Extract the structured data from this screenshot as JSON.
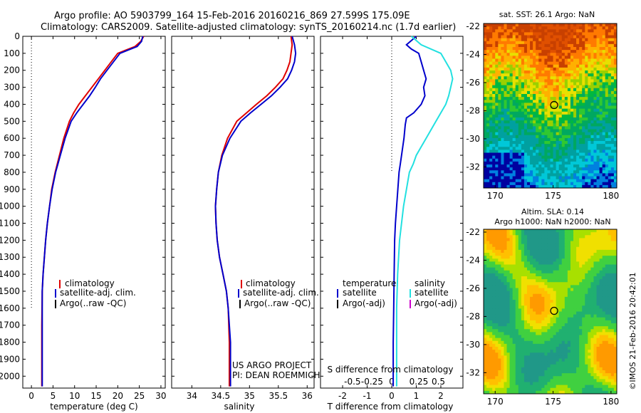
{
  "header": {
    "line1": "Argo profile: AO 5903799_164 15-Feb-2016 20160216_869 27.599S 175.09E",
    "line2": "Climatology: CARS2009. Satellite-adjusted climatology: synTS_20160214.nc (1.7d earlier)"
  },
  "colors": {
    "climatology": "#e00000",
    "satellite": "#0000cc",
    "argo": "#000000",
    "sal_satellite": "#22e0e0",
    "sal_argo": "#cc00cc"
  },
  "chart_data": [
    {
      "type": "line",
      "panel": "temperature",
      "xlabel": "temperature (deg C)",
      "ylabel": "",
      "xlim": [
        -2,
        31
      ],
      "ylim": [
        2070,
        0
      ],
      "x_ticks": [
        0,
        5,
        10,
        15,
        20,
        25,
        30
      ],
      "y_ticks": [
        0,
        100,
        200,
        300,
        400,
        500,
        600,
        700,
        800,
        900,
        1000,
        1100,
        1200,
        1300,
        1400,
        1500,
        1600,
        1700,
        1800,
        1900,
        2000
      ],
      "series": [
        {
          "name": "climatology",
          "color": "#e00000",
          "x": [
            26.0,
            25.3,
            24.0,
            22.0,
            20.0,
            18.5,
            17.0,
            15.5,
            14.0,
            12.5,
            11.0,
            9.8,
            8.8,
            7.5,
            6.5,
            5.5,
            4.7,
            4.2,
            3.7,
            3.3,
            3.0,
            2.7,
            2.5,
            2.4,
            2.4
          ],
          "y": [
            0,
            30,
            60,
            80,
            100,
            150,
            200,
            250,
            300,
            350,
            400,
            450,
            500,
            600,
            700,
            800,
            900,
            1000,
            1100,
            1200,
            1300,
            1400,
            1500,
            1700,
            2060
          ]
        },
        {
          "name": "satellite-adj. clim.",
          "color": "#0000cc",
          "x": [
            25.8,
            25.5,
            24.5,
            22.5,
            20.5,
            19.0,
            17.5,
            16.0,
            14.8,
            13.5,
            12.0,
            10.5,
            9.2,
            7.8,
            6.7,
            5.6,
            4.8,
            4.2,
            3.7,
            3.3,
            3.0,
            2.7,
            2.5,
            2.5,
            2.5
          ],
          "y": [
            0,
            30,
            60,
            80,
            100,
            150,
            200,
            250,
            300,
            350,
            400,
            450,
            500,
            600,
            700,
            800,
            900,
            1000,
            1100,
            1200,
            1300,
            1400,
            1500,
            1700,
            2060
          ]
        },
        {
          "name": "Argo(..raw -QC)",
          "color": "#000000",
          "x": [],
          "y": []
        }
      ],
      "reference_line_x": 0,
      "reference_line_ymax": 1600,
      "legend": [
        "climatology",
        "satellite-adj. clim.",
        "Argo(..raw -QC)"
      ]
    },
    {
      "type": "line",
      "panel": "salinity",
      "xlabel": "salinity",
      "xlim": [
        33.65,
        36.12
      ],
      "ylim": [
        2070,
        0
      ],
      "x_ticks": [
        34,
        34.5,
        35,
        35.5,
        36
      ],
      "series": [
        {
          "name": "climatology",
          "color": "#e00000",
          "x": [
            35.72,
            35.74,
            35.72,
            35.7,
            35.65,
            35.58,
            35.45,
            35.3,
            35.12,
            34.95,
            34.78,
            34.62,
            34.52,
            34.46,
            34.43,
            34.41,
            34.42,
            34.44,
            34.48,
            34.54,
            34.6,
            34.63,
            34.65,
            34.65
          ],
          "y": [
            0,
            50,
            100,
            150,
            200,
            250,
            300,
            350,
            400,
            450,
            500,
            600,
            700,
            800,
            900,
            1000,
            1100,
            1200,
            1300,
            1400,
            1500,
            1600,
            1800,
            2060
          ]
        },
        {
          "name": "satellite-adj. clim.",
          "color": "#0000cc",
          "x": [
            35.74,
            35.78,
            35.8,
            35.78,
            35.73,
            35.66,
            35.53,
            35.38,
            35.2,
            35.02,
            34.85,
            34.66,
            34.53,
            34.46,
            34.43,
            34.41,
            34.42,
            34.44,
            34.48,
            34.54,
            34.6,
            34.63,
            34.67,
            34.67
          ],
          "y": [
            0,
            50,
            100,
            150,
            200,
            250,
            300,
            350,
            400,
            450,
            500,
            600,
            700,
            800,
            900,
            1000,
            1100,
            1200,
            1300,
            1400,
            1500,
            1600,
            1800,
            2060
          ]
        },
        {
          "name": "Argo(..raw -QC)",
          "color": "#000000",
          "x": [],
          "y": []
        }
      ],
      "legend": [
        "climatology",
        "satellite-adj. clim.",
        "Argo(..raw -QC)"
      ],
      "annotation": [
        "US ARGO PROJECT",
        "PI: DEAN ROEMMICH"
      ]
    },
    {
      "type": "line",
      "panel": "difference",
      "xlabel": "T difference from climatology",
      "xlabel_top": "S difference from climatology",
      "xlim": [
        -2.9,
        2.9
      ],
      "ylim": [
        2070,
        0
      ],
      "x_ticks": [
        -2,
        -1,
        0,
        1,
        2
      ],
      "x_ticks_top": [
        "-0.5",
        "-0.25",
        "0",
        "0.25",
        "0.5"
      ],
      "series": [
        {
          "name": "temperature satellite",
          "color": "#0000cc",
          "x": [
            1.0,
            0.6,
            0.8,
            1.1,
            1.2,
            1.3,
            1.4,
            1.3,
            1.35,
            1.2,
            0.9,
            0.6,
            0.55,
            0.5,
            0.45,
            0.4,
            0.35,
            0.3,
            0.25,
            0.2,
            0.15,
            0.12,
            0.1,
            0.08,
            0.06,
            0.06
          ],
          "y": [
            0,
            50,
            75,
            100,
            150,
            200,
            250,
            300,
            350,
            400,
            450,
            480,
            520,
            600,
            650,
            700,
            750,
            800,
            900,
            1000,
            1100,
            1200,
            1400,
            1600,
            1800,
            2060
          ]
        },
        {
          "name": "salinity satellite",
          "color": "#22e0e0",
          "x": [
            0.2,
            0.3,
            0.5,
            0.55,
            0.6,
            0.62,
            0.6,
            0.58,
            0.55,
            0.5,
            0.45,
            0.4,
            0.35,
            0.3,
            0.25,
            0.22,
            0.18,
            0.15,
            0.12,
            0.08,
            0.06,
            0.05,
            0.05
          ],
          "y": [
            0,
            50,
            100,
            150,
            200,
            250,
            300,
            350,
            400,
            450,
            500,
            550,
            600,
            650,
            700,
            750,
            800,
            900,
            1000,
            1200,
            1400,
            1600,
            2060
          ]
        },
        {
          "name": "Argo(-adj)",
          "color": "#000000",
          "x": [],
          "y": []
        },
        {
          "name": "Argo(-adj) salinity",
          "color": "#cc00cc",
          "x": [],
          "y": []
        }
      ],
      "reference_line_x": 0,
      "reference_line_ymax": 800,
      "legend_left_title": "temperature",
      "legend_right_title": "salinity",
      "legend_left": [
        "satellite",
        "Argo(-adj)"
      ],
      "legend_right": [
        "satellite",
        "Argo(-adj)"
      ]
    },
    {
      "type": "heatmap",
      "panel": "sst_map",
      "title": "sat. SST: 26.1  Argo: NaN",
      "xlim": [
        169,
        180.5
      ],
      "ylim": [
        -33.5,
        -21.8
      ],
      "x_ticks": [
        170,
        175,
        180
      ],
      "y_ticks": [
        -22,
        -24,
        -26,
        -28,
        -30,
        -32
      ],
      "marker": {
        "lon": 175.09,
        "lat": -27.6
      }
    },
    {
      "type": "heatmap",
      "panel": "sla_map",
      "title_line1": "Altim. SLA: 0.14",
      "title_line2": "Argo h1000: NaN h2000: NaN",
      "xlim": [
        169,
        180.5
      ],
      "ylim": [
        -33.5,
        -21.8
      ],
      "x_ticks": [
        170,
        175,
        180
      ],
      "y_ticks": [
        -22,
        -24,
        -26,
        -28,
        -30,
        -32
      ],
      "marker": {
        "lon": 175.09,
        "lat": -27.6
      }
    }
  ],
  "credit": "©IMOS 21-Feb-2016 20:42:01"
}
